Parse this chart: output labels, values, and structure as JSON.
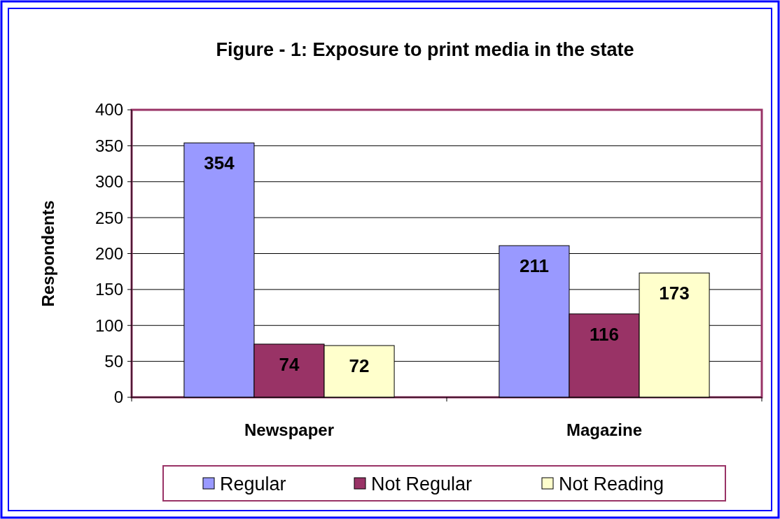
{
  "chart_data": {
    "type": "bar",
    "title": "Figure - 1: Exposure to print media in the state",
    "ylabel": "Respondents",
    "categories": [
      "Newspaper",
      "Magazine"
    ],
    "series": [
      {
        "name": "Regular",
        "color": "#9999ff",
        "values": [
          354,
          211
        ]
      },
      {
        "name": "Not Regular",
        "color": "#993366",
        "values": [
          74,
          116
        ]
      },
      {
        "name": "Not Reading",
        "color": "#ffffcc",
        "values": [
          72,
          173
        ]
      }
    ],
    "ylim": [
      0,
      400
    ],
    "yticks": [
      0,
      50,
      100,
      150,
      200,
      250,
      300,
      350,
      400
    ],
    "grid": "y",
    "legend": "bottom",
    "data_labels": true
  }
}
